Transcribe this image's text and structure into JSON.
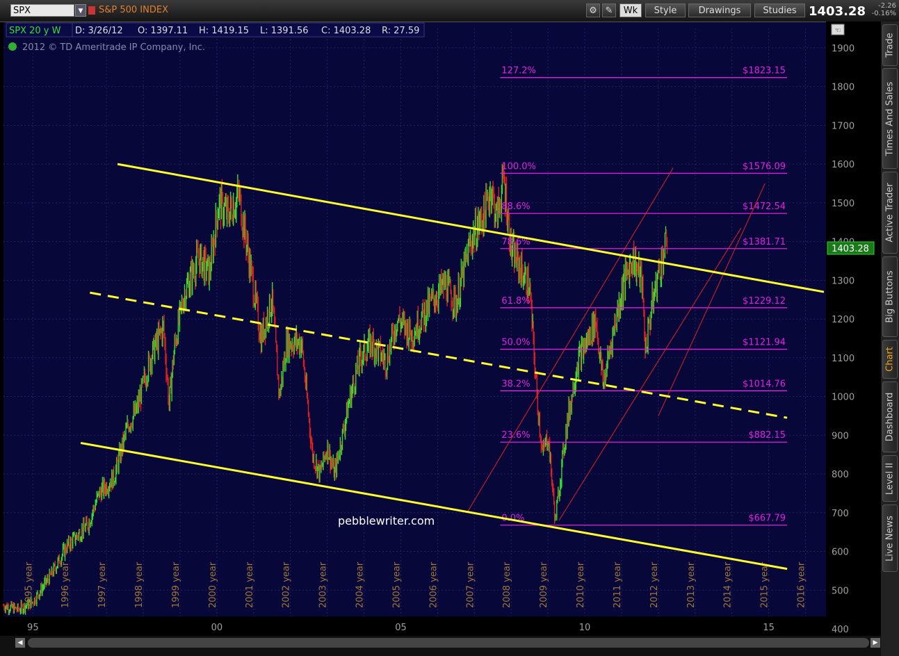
{
  "toolbar": {
    "symbol": "SPX",
    "symbol_name": "S&P 500 INDEX",
    "wk": "Wk",
    "style": "Style",
    "drawings": "Drawings",
    "studies": "Studies",
    "last_price": "1403.28",
    "change": "-2.26",
    "change_pct": "-0.16%"
  },
  "header": {
    "title": "SPX 20 y W",
    "date": "D: 3/26/12",
    "open": "O: 1397.11",
    "high": "H: 1419.15",
    "low": "L: 1391.56",
    "close": "C: 1403.28",
    "range": "R: 27.59",
    "copyright": "2012 © TD Ameritrade IP Company, Inc."
  },
  "sidebar": {
    "tabs": [
      "Trade",
      "Times And Sales",
      "Active Trader",
      "Big Buttons",
      "Chart",
      "Dashboard",
      "Level II",
      "Live News"
    ]
  },
  "watermark": "pebblewriter.com",
  "colors": {
    "background": "#07073a",
    "fib": "#e020e0",
    "channel": "#ffff30",
    "red_channel": "#e02020",
    "up_bar": "#30e030",
    "down_bar": "#e02020",
    "axis_text": "#a0a0a0",
    "year_text": "#a07838"
  },
  "chart_data": {
    "type": "bar",
    "title": "SPX 20 y W",
    "x_range": [
      1994.2,
      2016.5
    ],
    "ylim": [
      400,
      1950
    ],
    "y_ticks": [
      400,
      500,
      600,
      700,
      800,
      900,
      1000,
      1100,
      1200,
      1300,
      1400,
      1500,
      1600,
      1700,
      1800,
      1900
    ],
    "x_ticks": [
      {
        "label": "95",
        "x": 1995.0
      },
      {
        "label": "00",
        "x": 2000.0
      },
      {
        "label": "05",
        "x": 2005.0
      },
      {
        "label": "10",
        "x": 2010.0
      },
      {
        "label": "15",
        "x": 2015.0
      }
    ],
    "year_labels": [
      "1995 year",
      "1996 year",
      "1997 year",
      "1998 year",
      "1999 year",
      "2000 year",
      "2001 year",
      "2002 year",
      "2003 year",
      "2004 year",
      "2005 year",
      "2006 year",
      "2007 year",
      "2008 year",
      "2009 year",
      "2010 year",
      "2011 year",
      "2012 year",
      "2013 year",
      "2014 year",
      "2015 year",
      "2016 year"
    ],
    "price_path": [
      [
        1994.2,
        460
      ],
      [
        1994.6,
        450
      ],
      [
        1995.0,
        470
      ],
      [
        1995.5,
        540
      ],
      [
        1995.9,
        610
      ],
      [
        1996.3,
        650
      ],
      [
        1996.5,
        670
      ],
      [
        1996.8,
        750
      ],
      [
        1997.2,
        790
      ],
      [
        1997.6,
        930
      ],
      [
        1997.8,
        960
      ],
      [
        1998.2,
        1100
      ],
      [
        1998.55,
        1180
      ],
      [
        1998.7,
        980
      ],
      [
        1998.85,
        1130
      ],
      [
        1999.1,
        1260
      ],
      [
        1999.5,
        1360
      ],
      [
        1999.8,
        1320
      ],
      [
        2000.05,
        1500
      ],
      [
        2000.3,
        1470
      ],
      [
        2000.6,
        1520
      ],
      [
        2000.9,
        1340
      ],
      [
        2001.2,
        1150
      ],
      [
        2001.5,
        1250
      ],
      [
        2001.7,
        1000
      ],
      [
        2001.9,
        1140
      ],
      [
        2002.3,
        1140
      ],
      [
        2002.6,
        850
      ],
      [
        2002.8,
        800
      ],
      [
        2003.0,
        870
      ],
      [
        2003.2,
        800
      ],
      [
        2003.6,
        990
      ],
      [
        2003.9,
        1100
      ],
      [
        2004.2,
        1140
      ],
      [
        2004.6,
        1090
      ],
      [
        2004.9,
        1200
      ],
      [
        2005.3,
        1160
      ],
      [
        2005.8,
        1240
      ],
      [
        2006.2,
        1290
      ],
      [
        2006.5,
        1240
      ],
      [
        2006.9,
        1400
      ],
      [
        2007.3,
        1480
      ],
      [
        2007.45,
        1540
      ],
      [
        2007.6,
        1460
      ],
      [
        2007.8,
        1560
      ],
      [
        2008.0,
        1380
      ],
      [
        2008.3,
        1320
      ],
      [
        2008.5,
        1280
      ],
      [
        2008.7,
        1000
      ],
      [
        2008.85,
        850
      ],
      [
        2009.0,
        900
      ],
      [
        2009.2,
        680
      ],
      [
        2009.5,
        920
      ],
      [
        2009.8,
        1090
      ],
      [
        2010.1,
        1150
      ],
      [
        2010.3,
        1200
      ],
      [
        2010.5,
        1030
      ],
      [
        2010.8,
        1180
      ],
      [
        2011.05,
        1290
      ],
      [
        2011.3,
        1360
      ],
      [
        2011.55,
        1300
      ],
      [
        2011.65,
        1120
      ],
      [
        2011.8,
        1220
      ],
      [
        2012.0,
        1320
      ],
      [
        2012.24,
        1403
      ]
    ],
    "series": [
      {
        "name": "Upper channel",
        "style": "solid",
        "x": [
          1997.3,
          2016.5
        ],
        "y": [
          1600,
          1270
        ]
      },
      {
        "name": "Mid channel",
        "style": "dashed",
        "x": [
          1996.55,
          2015.5
        ],
        "y": [
          1268,
          945
        ]
      },
      {
        "name": "Lower channel",
        "style": "solid",
        "x": [
          1996.3,
          2015.5
        ],
        "y": [
          880,
          555
        ]
      }
    ],
    "red_channel": [
      {
        "x": [
          2006.8,
          2012.4
        ],
        "y": [
          700,
          1590
        ]
      },
      {
        "x": [
          2009.3,
          2014.25
        ],
        "y": [
          680,
          1435
        ]
      },
      {
        "x": [
          2012.0,
          2014.9
        ],
        "y": [
          950,
          1550
        ]
      }
    ],
    "fib_levels": [
      {
        "pct": "127.2%",
        "value": 1823.15,
        "label": "$1823.15"
      },
      {
        "pct": "100.0%",
        "value": 1576.09,
        "label": "$1576.09"
      },
      {
        "pct": "88.6%",
        "value": 1472.54,
        "label": "$1472.54"
      },
      {
        "pct": "78.6%",
        "value": 1381.71,
        "label": "$1381.71"
      },
      {
        "pct": "61.8%",
        "value": 1229.12,
        "label": "$1229.12"
      },
      {
        "pct": "50.0%",
        "value": 1121.94,
        "label": "$1121.94"
      },
      {
        "pct": "38.2%",
        "value": 1014.76,
        "label": "$1014.76"
      },
      {
        "pct": "23.6%",
        "value": 882.15,
        "label": "$882.15"
      },
      {
        "pct": "0.0%",
        "value": 667.79,
        "label": "$667.79"
      }
    ],
    "fib_x_range": [
      2007.7,
      2015.5
    ],
    "last_value": 1403.28
  }
}
